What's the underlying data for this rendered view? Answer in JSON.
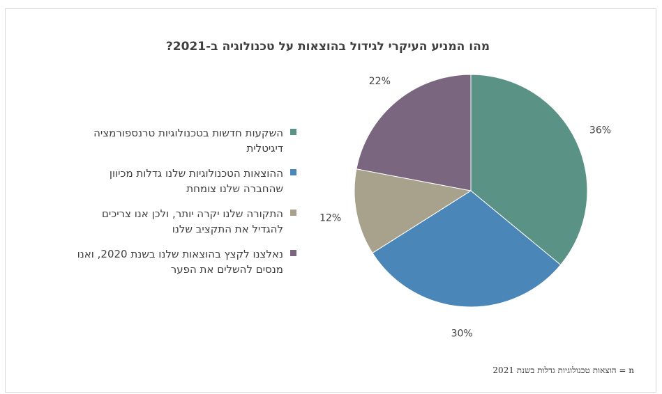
{
  "chart_data": {
    "type": "pie",
    "title": "מהו  המניע העיקרי לגידול בהוצאות על טכנולוגיה ב-2021?",
    "categories": [
      "השקעות חדשות בטכנולוגיות טרנספורמציה  דיגיטלית",
      "ההוצאות הטכנולוגיות שלנו גדלות מכיוון שהחברה שלנו צומחת",
      "התקורה שלנו יקרה יותר, ולכן אנו צריכים להגדיל את התקציב שלנו",
      "נאלצנו לקצץ בהוצאות שלנו בשנת 2020, ואנו מנסים להשלים את הפער"
    ],
    "values": [
      36,
      30,
      12,
      22
    ],
    "value_labels": [
      "36%",
      "30%",
      "12%",
      "22%"
    ],
    "colors": [
      "#5a9286",
      "#4a87b8",
      "#a8a18c",
      "#7b6680"
    ],
    "legend_position": "left"
  },
  "footnote": "n = הוצאות טכנולוגיות גדלות בשנת 2021"
}
